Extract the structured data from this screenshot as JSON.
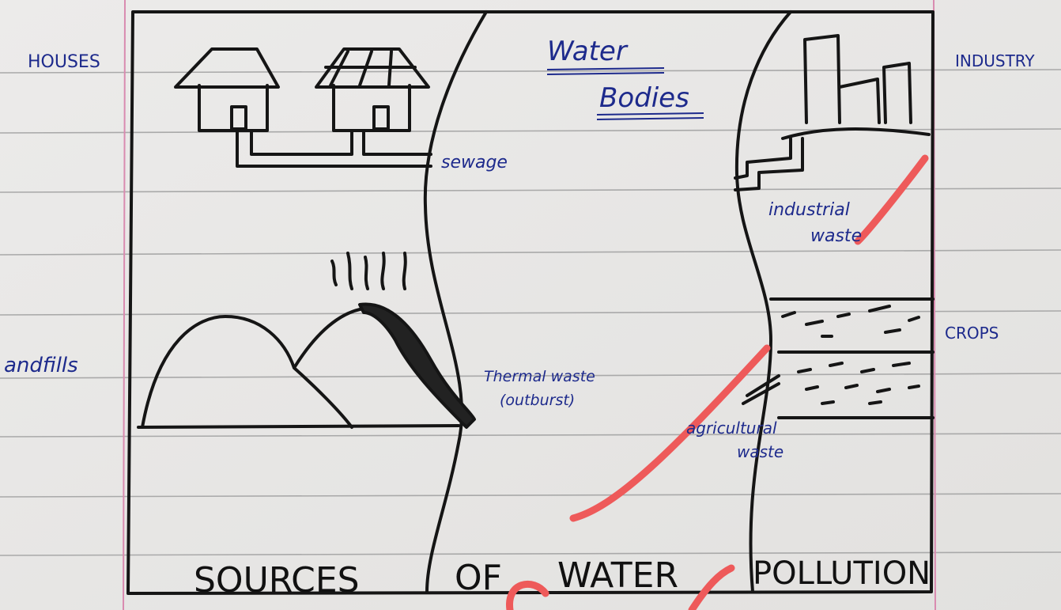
{
  "labels": {
    "houses": "HOUSES",
    "water_bodies": [
      "Water",
      "Bodies"
    ],
    "industry": "INDUSTRY",
    "sewage": "sewage",
    "industrial_waste": [
      "industrial",
      "waste"
    ],
    "crops": "CROPS",
    "landfills": "andfills",
    "thermal_waste": [
      "Thermal waste",
      "(outburst)"
    ],
    "agricultural_waste": [
      "agricultural",
      "waste"
    ]
  },
  "title_words": [
    "SOURCES",
    "OF",
    "WATER",
    "POLLUTION"
  ]
}
